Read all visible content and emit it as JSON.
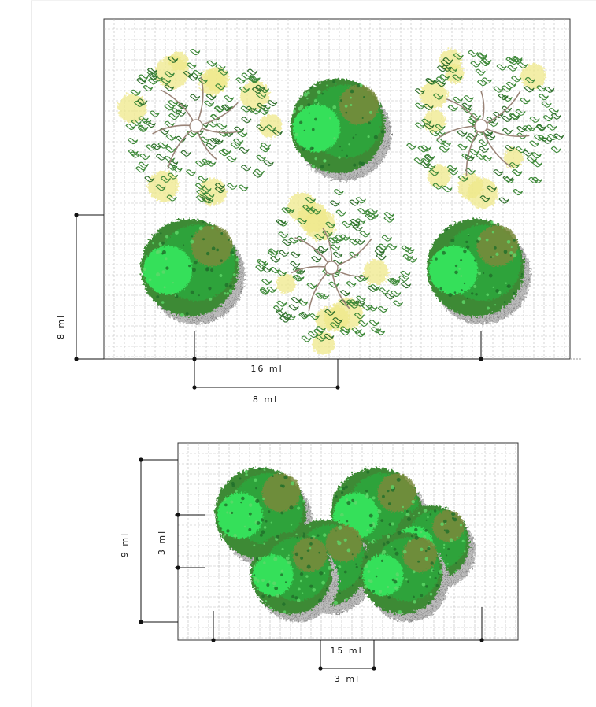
{
  "plan_top": {
    "dimensions": {
      "vertical_total": "8 ml",
      "horizontal_total": "16 ml",
      "horizontal_spacing": "8 ml"
    },
    "trees": [
      {
        "kind": "deciduous-outline"
      },
      {
        "kind": "evergreen-canopy"
      },
      {
        "kind": "deciduous-outline"
      },
      {
        "kind": "evergreen-canopy"
      },
      {
        "kind": "deciduous-outline"
      },
      {
        "kind": "evergreen-canopy"
      }
    ]
  },
  "plan_bottom": {
    "dimensions": {
      "vertical_total": "9 ml",
      "vertical_spacing": "3 ml",
      "horizontal_total": "15 ml",
      "horizontal_spacing": "3 ml"
    },
    "trees": [
      {
        "kind": "evergreen-canopy"
      },
      {
        "kind": "evergreen-canopy"
      },
      {
        "kind": "evergreen-canopy"
      },
      {
        "kind": "evergreen-canopy"
      },
      {
        "kind": "evergreen-canopy"
      },
      {
        "kind": "evergreen-canopy"
      }
    ]
  },
  "colors": {
    "grid": "#b9b9b9",
    "frame": "#333333",
    "foliage_dark": "#3e8a35",
    "foliage_mid": "#2fa33a",
    "foliage_light": "#36e05a",
    "foliage_olive": "#7a8a3a",
    "flower_yellow": "#efe98a",
    "trunk": "#9a8478",
    "shadow": "#9e9e9e"
  }
}
